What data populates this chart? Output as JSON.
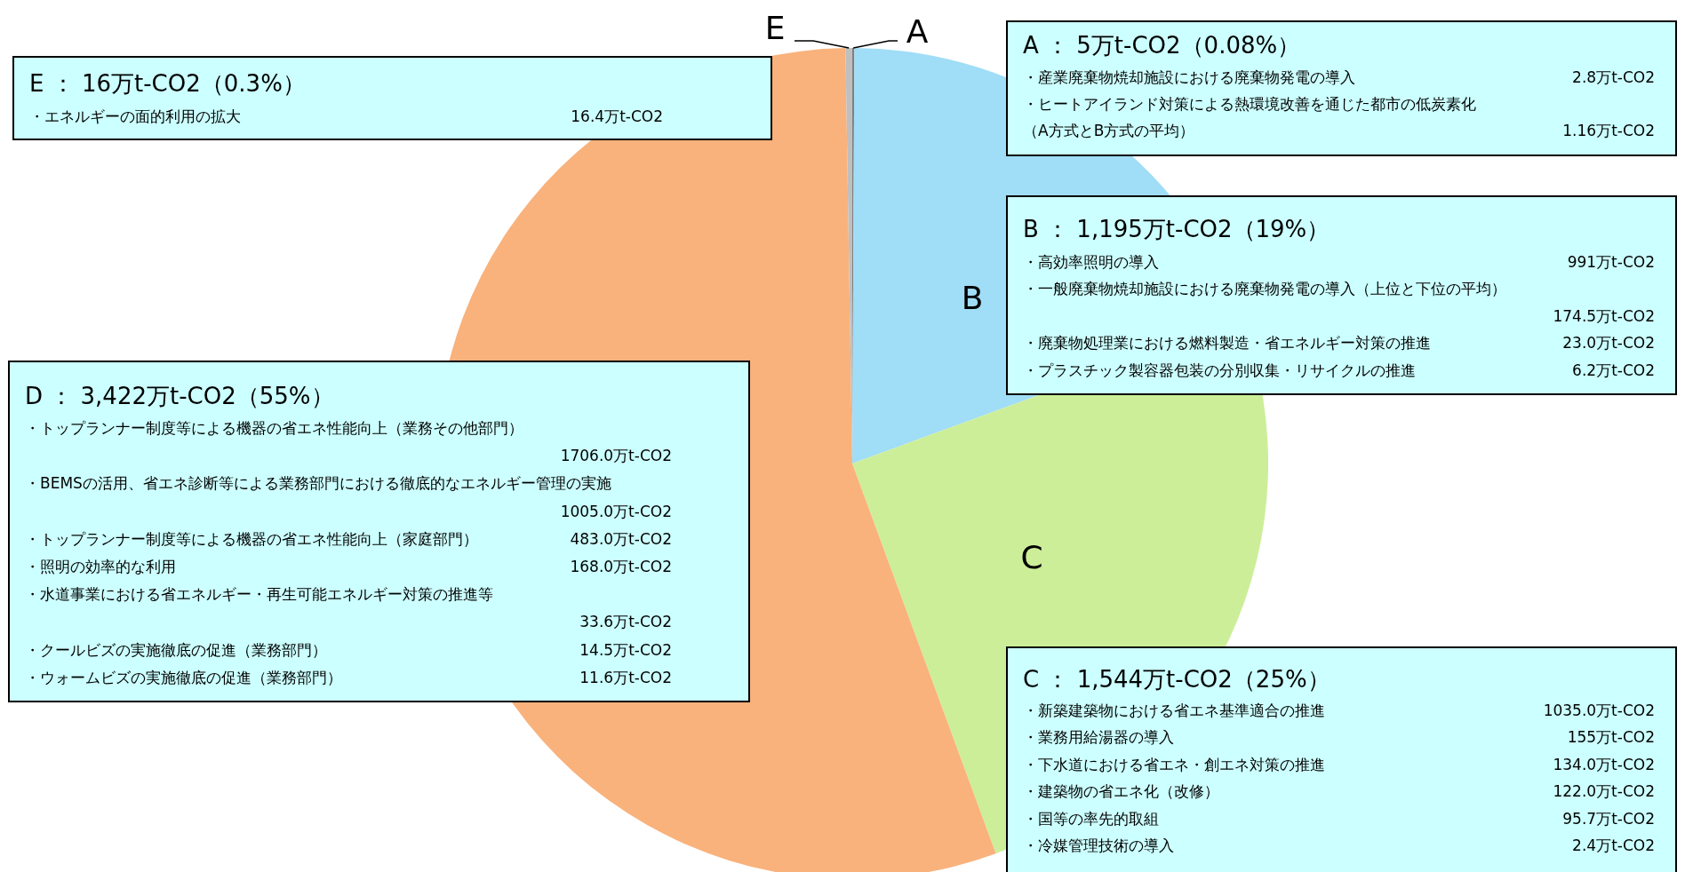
{
  "chart_data": {
    "type": "pie",
    "categories": [
      "A",
      "B",
      "C",
      null,
      "E"
    ],
    "values": [
      0.08,
      19.33,
      24.98,
      55.35,
      0.26
    ],
    "colors": [
      "#7F7F7F",
      "#A0DDF6",
      "#CCEE99",
      "#F9B27C",
      "#BFBFBF"
    ],
    "annotations": [
      "E ： 16万t-CO2（0.3%）",
      "・エネルギーの面的利用の拡大",
      "16.4万t-CO2",
      "A ： 5万t-CO2（0.08%）",
      "・産業廃棄物焼却施設における廃棄物発電の導入",
      "2.8万t-CO2",
      "・ヒートアイランド対策による熱環境改善を通じた都市の低炭素化",
      "（A方式とB方式の平均）",
      "1.16万t-CO2",
      "B ： 1,195万t-CO2（19%）",
      "・高効率照明の導入",
      "991万t-CO2",
      "・一般廃棄物焼却施設における廃棄物発電の導入（上位と下位の平均）",
      "174.5万t-CO2",
      "・廃棄物処理業における燃料製造・省エネルギー対策の推進",
      "23.0万t-CO2",
      "・プラスチック製容器包装の分別収集・リサイクルの推進",
      "6.2万t-CO2",
      "D ： 3,422万t-CO2（55%）",
      "・トップランナー制度等による機器の省エネ性能向上（業務その他部門）",
      "1706.0万t-CO2",
      "・BEMSの活用、省エネ診断等による業務部門における徹底的なエネルギー管理の実施",
      "1005.0万t-CO2",
      "・トップランナー制度等による機器の省エネ性能向上（家庭部門）",
      "483.0万t-CO2",
      "・照明の効率的な利用",
      "168.0万t-CO2",
      "・水道事業における省エネルギー・再生可能エネルギー対策の推進等",
      "33.6万t-CO2",
      "・クールビズの実施徹底の促進（業務部門）",
      "14.5万t-CO2",
      "・ウォームビズの実施徹底の促進（業務部門）",
      "11.6万t-CO2",
      "C ： 1,544万t-CO2（25%）",
      "・新築建築物における省エネ基準適合の推進",
      "1035.0万t-CO2",
      "・業務用給湯器の導入",
      "155万t-CO2",
      "・下水道における省エネ・創エネ対策の推進",
      "134.0万t-CO2",
      "・建築物の省エネ化（改修）",
      "122.0万t-CO2",
      "・国等の率先的取組",
      "95.7万t-CO2",
      "・冷媒管理技術の導入",
      "2.4万t-CO2"
    ]
  }
}
